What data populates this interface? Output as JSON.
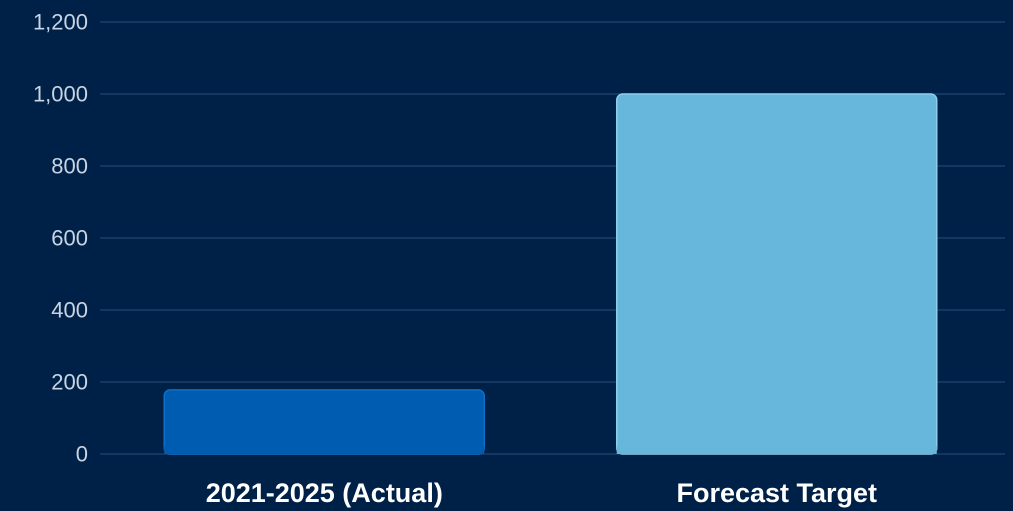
{
  "chart_data": {
    "type": "bar",
    "categories": [
      "2021-2025 (Actual)",
      "Forecast Target"
    ],
    "values": [
      178,
      1000
    ],
    "title": "",
    "xlabel": "",
    "ylabel": "",
    "ylim": [
      0,
      1200
    ],
    "y_ticks": [
      0,
      200,
      400,
      600,
      800,
      1000,
      1200
    ],
    "y_tick_labels": [
      "0",
      "200",
      "400",
      "600",
      "800",
      "1,000",
      "1,200"
    ],
    "grid": true,
    "legend": "none",
    "colors": {
      "background": "#002147",
      "grid": "#1b3f6b",
      "bars": [
        "#005cb0",
        "#67b6dc"
      ],
      "bar_borders": [
        "#0e6fc8",
        "#8ccdee"
      ],
      "tick_text": "#c8d4e3",
      "category_text": "#ffffff"
    }
  }
}
